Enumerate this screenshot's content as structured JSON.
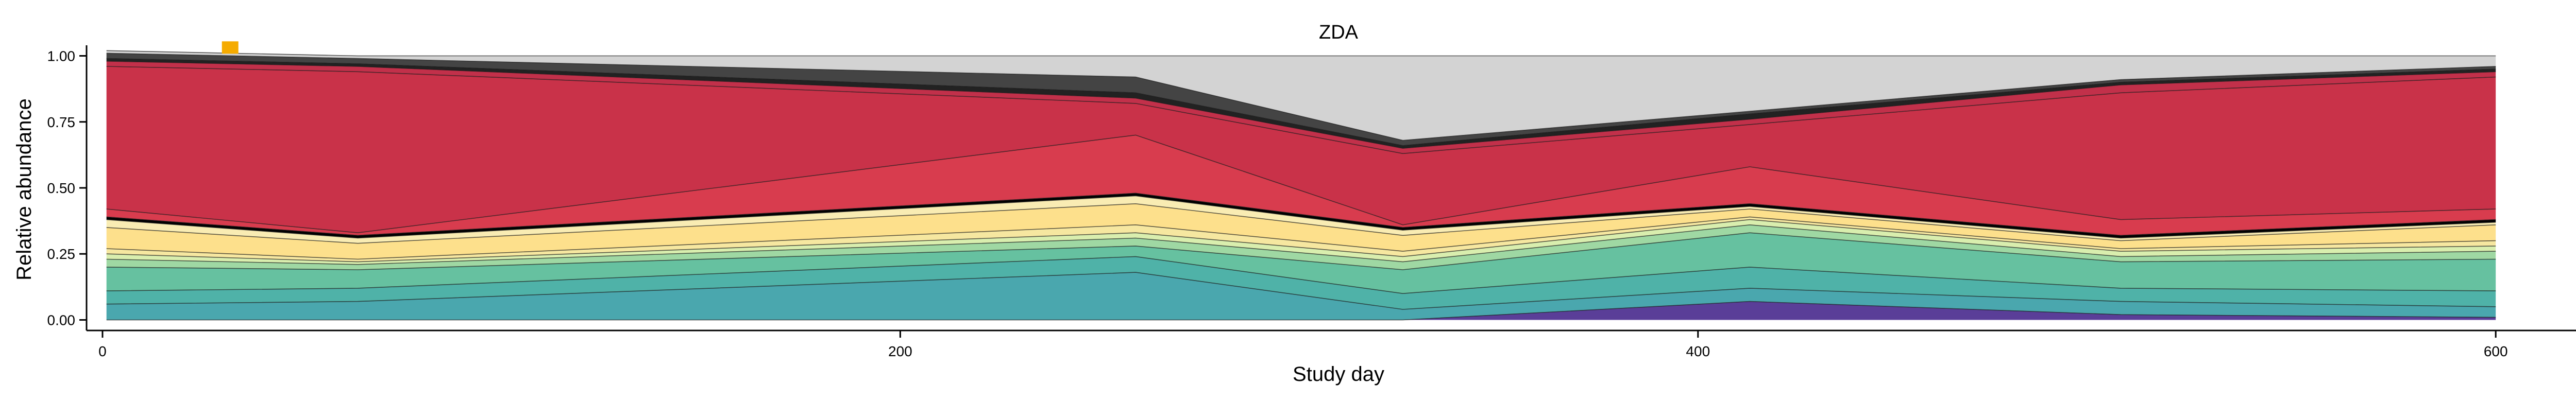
{
  "chart_data": {
    "type": "area",
    "stacked": true,
    "title": "ZDA",
    "xlabel": "Study day",
    "ylabel": "Relative abundance",
    "xlim": [
      -4,
      624
    ],
    "ylim": [
      -0.04,
      1.04
    ],
    "xticks": [
      0,
      200,
      400,
      600
    ],
    "xtick_labels": [
      "0",
      "200",
      "400",
      "600"
    ],
    "yticks": [
      0,
      0.25,
      0.5,
      0.75,
      1.0
    ],
    "ytick_labels": [
      "0.00",
      "0.25",
      "0.50",
      "0.75",
      "1.00"
    ],
    "grid": false,
    "legend": "none",
    "x": [
      1,
      64,
      259,
      326,
      413,
      506,
      600
    ],
    "series": [
      {
        "color": "#5a3e98",
        "values": [
          0.0,
          0.0,
          0.0,
          0.0,
          0.07,
          0.02,
          0.01
        ]
      },
      {
        "color": "#4aa7ae",
        "values": [
          0.06,
          0.07,
          0.18,
          0.04,
          0.05,
          0.05,
          0.04
        ]
      },
      {
        "color": "#4fb2a8",
        "values": [
          0.05,
          0.05,
          0.06,
          0.06,
          0.08,
          0.05,
          0.06
        ]
      },
      {
        "color": "#66c1a0",
        "values": [
          0.09,
          0.07,
          0.04,
          0.09,
          0.13,
          0.1,
          0.12
        ]
      },
      {
        "color": "#9fd8a3",
        "values": [
          0.03,
          0.02,
          0.03,
          0.03,
          0.03,
          0.02,
          0.03
        ]
      },
      {
        "color": "#d9eeae",
        "values": [
          0.02,
          0.01,
          0.02,
          0.02,
          0.02,
          0.02,
          0.02
        ]
      },
      {
        "color": "#f6e7a0",
        "values": [
          0.02,
          0.01,
          0.03,
          0.02,
          0.01,
          0.01,
          0.02
        ]
      },
      {
        "color": "#fde08c",
        "values": [
          0.08,
          0.06,
          0.08,
          0.06,
          0.03,
          0.03,
          0.06
        ]
      },
      {
        "color": "#f9ecb3",
        "values": [
          0.03,
          0.02,
          0.03,
          0.02,
          0.01,
          0.01,
          0.01
        ]
      },
      {
        "color": "#000000",
        "values": [
          0.01,
          0.01,
          0.01,
          0.01,
          0.01,
          0.01,
          0.01
        ]
      },
      {
        "color": "#d83c4e",
        "values": [
          0.03,
          0.01,
          0.22,
          0.01,
          0.14,
          0.06,
          0.04
        ]
      },
      {
        "color": "#c93249",
        "values": [
          0.54,
          0.61,
          0.12,
          0.27,
          0.16,
          0.48,
          0.5
        ]
      },
      {
        "color": "#c2304a",
        "values": [
          0.02,
          0.02,
          0.02,
          0.02,
          0.02,
          0.03,
          0.02
        ]
      },
      {
        "color": "#222222",
        "values": [
          0.01,
          0.01,
          0.02,
          0.01,
          0.02,
          0.01,
          0.01
        ]
      },
      {
        "color": "#444444",
        "values": [
          0.02,
          0.02,
          0.06,
          0.02,
          0.01,
          0.01,
          0.01
        ]
      },
      {
        "color": "#d3d3d3",
        "values": [
          0.01,
          0.01,
          0.08,
          0.32,
          0.21,
          0.09,
          0.04
        ]
      }
    ],
    "marker": {
      "x": 32,
      "y": 1.02,
      "color": "#f5ab00"
    }
  }
}
